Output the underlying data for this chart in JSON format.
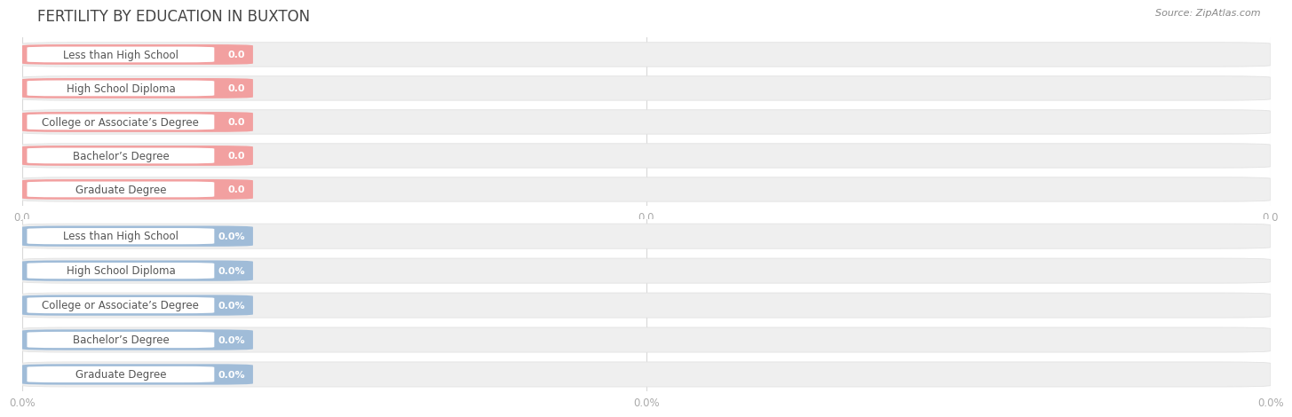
{
  "title": "FERTILITY BY EDUCATION IN BUXTON",
  "source": "Source: ZipAtlas.com",
  "categories": [
    "Less than High School",
    "High School Diploma",
    "College or Associate’s Degree",
    "Bachelor’s Degree",
    "Graduate Degree"
  ],
  "values_top": [
    0.0,
    0.0,
    0.0,
    0.0,
    0.0
  ],
  "values_bottom": [
    0.0,
    0.0,
    0.0,
    0.0,
    0.0
  ],
  "bar_color_top": "#f2a0a0",
  "bar_bg_color": "#efefef",
  "bar_color_bottom": "#a0bcd8",
  "title_color": "#444444",
  "tick_label_color": "#aaaaaa",
  "source_color": "#888888",
  "bg_color": "#ffffff",
  "xtick_labels_top": [
    "0.0",
    "0.0",
    "0.0"
  ],
  "xtick_labels_bottom": [
    "0.0%",
    "0.0%",
    "0.0%"
  ],
  "title_fontsize": 12,
  "label_fontsize": 8.5,
  "value_fontsize": 8,
  "tick_fontsize": 8.5
}
